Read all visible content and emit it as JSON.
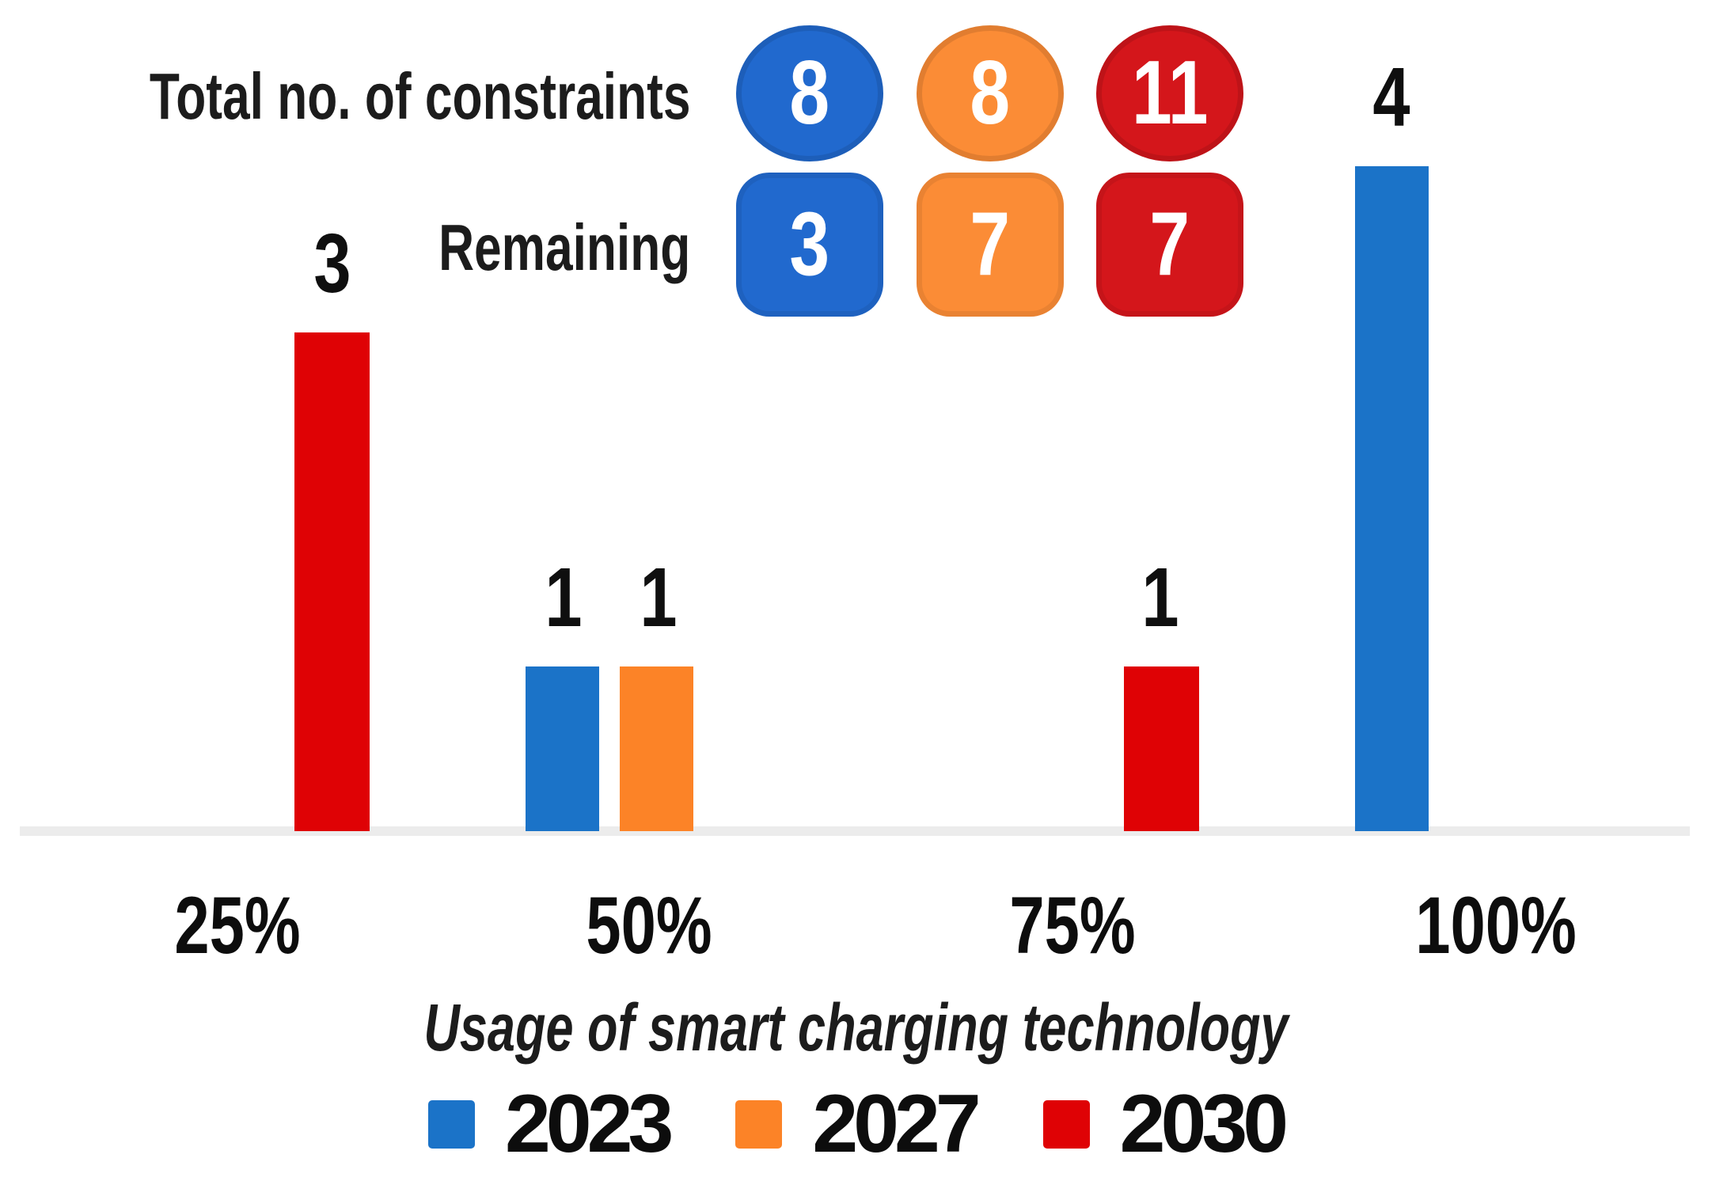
{
  "chart_data": {
    "type": "bar",
    "title": "",
    "xlabel": "Usage of smart charging technology",
    "ylabel": "",
    "categories": [
      "25%",
      "50%",
      "75%",
      "100%"
    ],
    "series": [
      {
        "name": "2023",
        "color": "#1B73C8",
        "values": [
          0,
          1,
          0,
          4
        ]
      },
      {
        "name": "2027",
        "color": "#FC8327",
        "values": [
          0,
          1,
          0,
          0
        ]
      },
      {
        "name": "2030",
        "color": "#DF0205",
        "values": [
          3,
          0,
          1,
          0
        ]
      }
    ],
    "bar_value_labels": [
      {
        "category": "25%",
        "series": "2030",
        "value": 3
      },
      {
        "category": "50%",
        "series": "2023",
        "value": 1
      },
      {
        "category": "50%",
        "series": "2027",
        "value": 1
      },
      {
        "category": "75%",
        "series": "2030",
        "value": 1
      },
      {
        "category": "100%",
        "series": "2023",
        "value": 4
      }
    ],
    "ylim": [
      0,
      4
    ],
    "grid": false,
    "legend_position": "bottom",
    "annotations": [
      {
        "label": "Total no. of constraints",
        "shape": "circle",
        "values_by_series": {
          "2023": 8,
          "2027": 8,
          "2030": 11
        }
      },
      {
        "label": "Remaining",
        "shape": "rounded-square",
        "values_by_series": {
          "2023": 3,
          "2027": 7,
          "2030": 7
        }
      }
    ]
  },
  "header": {
    "total_label": "Total no. of constraints",
    "remaining_label": "Remaining",
    "totals": [
      "8",
      "8",
      "11"
    ],
    "remaining": [
      "3",
      "7",
      "7"
    ]
  },
  "bars": {
    "v25_2030": "3",
    "v50_2023": "1",
    "v50_2027": "1",
    "v75_2030": "1",
    "v100_2023": "4"
  },
  "axis": {
    "ticks": [
      "25%",
      "50%",
      "75%",
      "100%"
    ],
    "title": "Usage of smart charging technology"
  },
  "legend": [
    {
      "label": "2023",
      "color": "#1B73C8"
    },
    {
      "label": "2027",
      "color": "#FC8327"
    },
    {
      "label": "2030",
      "color": "#DF0205"
    }
  ],
  "colors": {
    "bar_blue": "#1B73C8",
    "bar_orange": "#FC8327",
    "bar_red": "#DF0205",
    "badge_blue": "#2169CE",
    "badge_orange": "#FB8C36",
    "badge_red": "#D4161B",
    "axis_line": "#ECECEC",
    "text": "#141414",
    "background": "#FFFFFF"
  }
}
